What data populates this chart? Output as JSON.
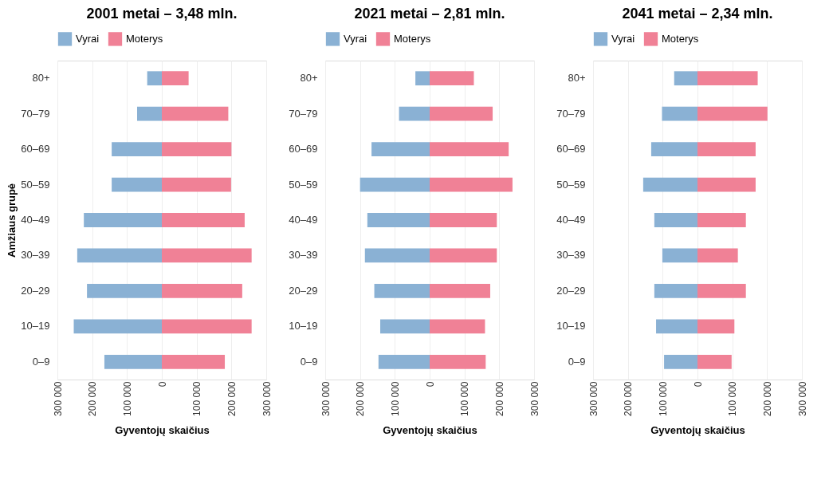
{
  "chart_data": [
    {
      "type": "bar",
      "orientation": "horizontal",
      "stacked": true,
      "title": "2001 metai – 3,48 mln.",
      "xlabel": "Gyventojų skaičius",
      "ylabel": "Amžiaus grupė",
      "categories": [
        "80+",
        "70–79",
        "60–69",
        "50–59",
        "40–49",
        "30–39",
        "20–29",
        "10–19",
        "0–9"
      ],
      "series": [
        {
          "name": "Vyrai",
          "color": "#8ab1d4",
          "values": [
            -42000,
            -71000,
            -144000,
            -144000,
            -224000,
            -243000,
            -215000,
            -253000,
            -165000
          ]
        },
        {
          "name": "Moterys",
          "color": "#f08196",
          "values": [
            77000,
            191000,
            200000,
            199000,
            238000,
            258000,
            231000,
            258000,
            181000
          ]
        }
      ],
      "xlim": [
        -300000,
        300000
      ],
      "xticks": [
        {
          "value": -300000,
          "label": "300 000"
        },
        {
          "value": -200000,
          "label": "200 000"
        },
        {
          "value": -100000,
          "label": "100 000"
        },
        0,
        {
          "value": 100000,
          "label": "100 000"
        },
        {
          "value": 200000,
          "label": "200 000"
        },
        {
          "value": 300000,
          "label": "300 000"
        }
      ],
      "grid": "x",
      "legend": "top"
    },
    {
      "type": "bar",
      "orientation": "horizontal",
      "stacked": true,
      "title": "2021 metai – 2,81 mln.",
      "xlabel": "Gyventojų skaičius",
      "categories": [
        "80+",
        "70–79",
        "60–69",
        "50–59",
        "40–49",
        "30–39",
        "20–29",
        "10–19",
        "0–9"
      ],
      "series": [
        {
          "name": "Vyrai",
          "color": "#8ab1d4",
          "values": [
            -41000,
            -88000,
            -167000,
            -200000,
            -179000,
            -186000,
            -159000,
            -142000,
            -147000
          ]
        },
        {
          "name": "Moterys",
          "color": "#f08196",
          "values": [
            127000,
            181000,
            227000,
            238000,
            193000,
            193000,
            174000,
            159000,
            161000
          ]
        }
      ],
      "xlim": [
        -300000,
        300000
      ],
      "xticks": [
        {
          "value": -300000,
          "label": "300 000"
        },
        {
          "value": -200000,
          "label": "200 000"
        },
        {
          "value": -100000,
          "label": "100 000"
        },
        0,
        {
          "value": 100000,
          "label": "100 000"
        },
        {
          "value": 200000,
          "label": "200 000"
        },
        {
          "value": 300000,
          "label": "300 000"
        }
      ],
      "grid": "x",
      "legend": "top"
    },
    {
      "type": "bar",
      "orientation": "horizontal",
      "stacked": true,
      "title": "2041 metai – 2,34 mln.",
      "xlabel": "Gyventojų skaičius",
      "categories": [
        "80+",
        "70–79",
        "60–69",
        "50–59",
        "40–49",
        "30–39",
        "20–29",
        "10–19",
        "0–9"
      ],
      "series": [
        {
          "name": "Vyrai",
          "color": "#8ab1d4",
          "values": [
            -67000,
            -102000,
            -133000,
            -156000,
            -124000,
            -101000,
            -124000,
            -119000,
            -96000
          ]
        },
        {
          "name": "Moterys",
          "color": "#f08196",
          "values": [
            173000,
            201000,
            167000,
            167000,
            139000,
            116000,
            139000,
            106000,
            98000
          ]
        }
      ],
      "xlim": [
        -300000,
        300000
      ],
      "xticks": [
        {
          "value": -300000,
          "label": "300 000"
        },
        {
          "value": -200000,
          "label": "200 000"
        },
        {
          "value": -100000,
          "label": "100 000"
        },
        0,
        {
          "value": 100000,
          "label": "100 000"
        },
        {
          "value": 200000,
          "label": "200 000"
        },
        {
          "value": 300000,
          "label": "300 000"
        }
      ],
      "grid": "x",
      "legend": "top"
    }
  ]
}
